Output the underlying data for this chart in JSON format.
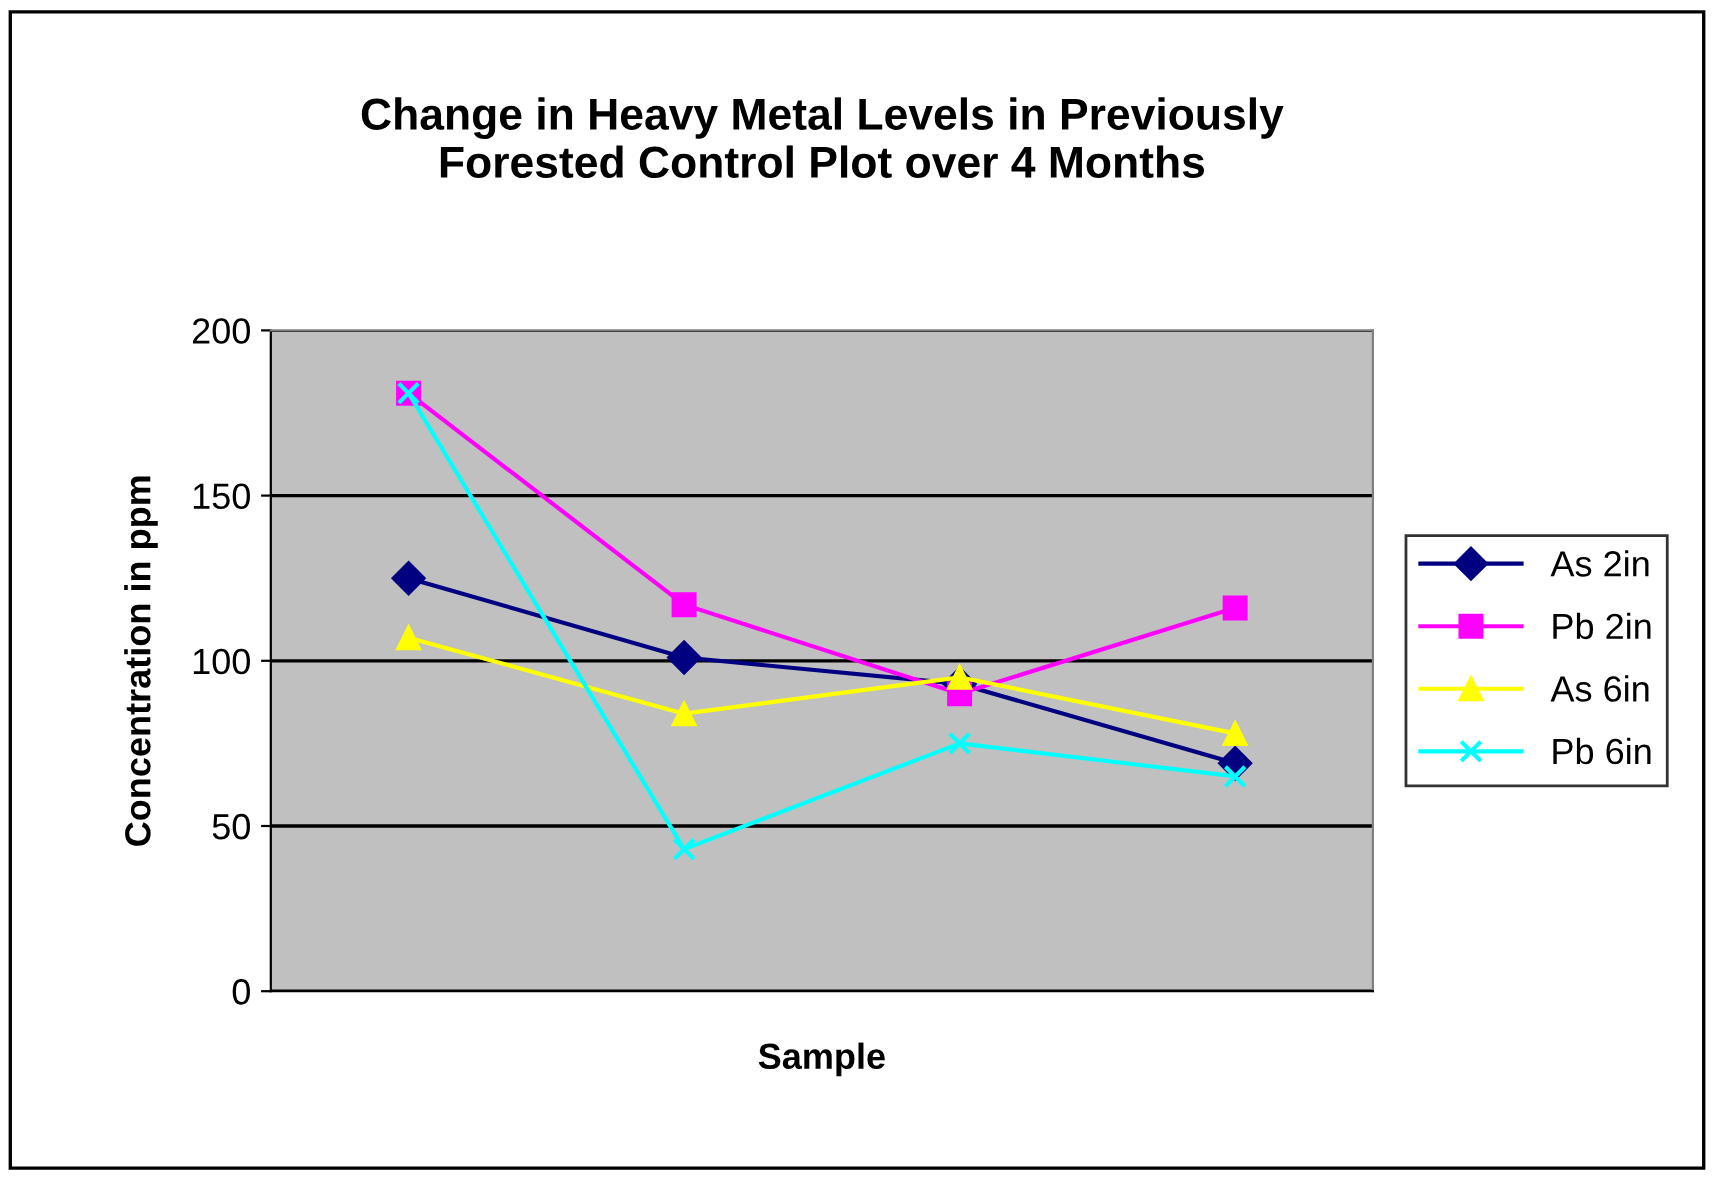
{
  "chart_data": {
    "type": "line",
    "title": "Change in Heavy Metal Levels in Previously\nForested Control Plot over 4 Months",
    "xlabel": "Sample",
    "ylabel": "Concentration in ppm",
    "categories": [
      null,
      null,
      null,
      null
    ],
    "series": [
      {
        "name": "As 2in",
        "color": "#000080",
        "marker": "diamond",
        "values": [
          125,
          101,
          93,
          69
        ]
      },
      {
        "name": "Pb 2in",
        "color": "#ff00ff",
        "marker": "square",
        "values": [
          181,
          117,
          90,
          116
        ]
      },
      {
        "name": "As 6in",
        "color": "#ffff00",
        "marker": "triangle",
        "values": [
          107,
          84,
          95,
          78
        ]
      },
      {
        "name": "Pb 6in",
        "color": "#00ffff",
        "marker": "cross",
        "values": [
          181,
          43,
          75,
          65
        ]
      }
    ],
    "ylim": [
      0,
      200
    ],
    "yticks": [
      0,
      50,
      100,
      150,
      200
    ],
    "grid": "y",
    "legend": "right"
  }
}
